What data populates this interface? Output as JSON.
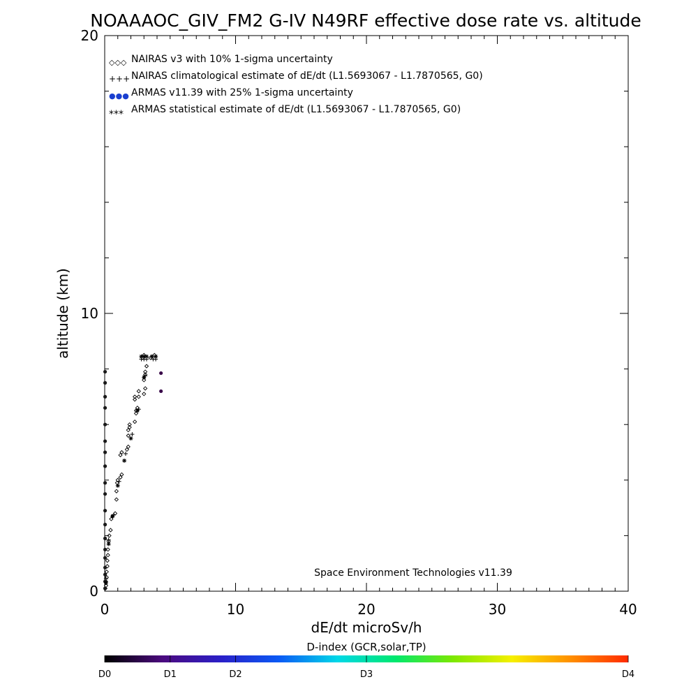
{
  "chart_data": {
    "type": "scatter",
    "title": "NOAAAOC_GIV_FM2 G-IV   N49RF  effective dose rate vs. altitude",
    "xlabel": "dE/dt microSv/h",
    "ylabel": "altitude (km)",
    "xlim": [
      0,
      40
    ],
    "ylim": [
      0,
      20
    ],
    "x_ticks": [
      {
        "value": 0,
        "label": "0"
      },
      {
        "value": 10,
        "label": "10"
      },
      {
        "value": 20,
        "label": "20"
      },
      {
        "value": 30,
        "label": "30"
      },
      {
        "value": 40,
        "label": "40"
      }
    ],
    "y_ticks": [
      {
        "value": 0,
        "label": "0"
      },
      {
        "value": 10,
        "label": "10"
      },
      {
        "value": 20,
        "label": "20"
      }
    ],
    "annotation": "Space Environment Technologies v11.39",
    "legend_position": "top-left",
    "series": [
      {
        "name": "NAIRAS v3 with 10% 1-sigma uncertainty",
        "marker": "diamond",
        "legend_symbol": "◇◇◇",
        "color": "#000000",
        "points": [
          [
            0.05,
            0.1
          ],
          [
            0.1,
            0.2
          ],
          [
            0.1,
            0.35
          ],
          [
            0.15,
            0.5
          ],
          [
            0.15,
            0.7
          ],
          [
            0.2,
            0.9
          ],
          [
            0.2,
            1.1
          ],
          [
            0.25,
            1.3
          ],
          [
            0.25,
            1.5
          ],
          [
            0.3,
            1.8
          ],
          [
            0.35,
            2.0
          ],
          [
            0.45,
            2.2
          ],
          [
            0.5,
            2.6
          ],
          [
            0.6,
            2.7
          ],
          [
            0.8,
            2.8
          ],
          [
            0.9,
            3.3
          ],
          [
            0.9,
            3.6
          ],
          [
            0.95,
            3.9
          ],
          [
            1.0,
            4.0
          ],
          [
            1.2,
            4.1
          ],
          [
            1.3,
            4.2
          ],
          [
            1.2,
            4.9
          ],
          [
            1.3,
            5.0
          ],
          [
            1.7,
            5.1
          ],
          [
            1.8,
            5.2
          ],
          [
            1.8,
            5.6
          ],
          [
            1.8,
            5.8
          ],
          [
            1.9,
            5.9
          ],
          [
            1.9,
            6.0
          ],
          [
            2.3,
            6.1
          ],
          [
            2.4,
            6.4
          ],
          [
            2.4,
            6.5
          ],
          [
            2.5,
            6.6
          ],
          [
            2.3,
            6.9
          ],
          [
            2.3,
            7.0
          ],
          [
            2.6,
            7.0
          ],
          [
            2.6,
            7.2
          ],
          [
            3.0,
            7.1
          ],
          [
            3.1,
            7.3
          ],
          [
            3.0,
            7.6
          ],
          [
            3.1,
            7.8
          ],
          [
            3.1,
            7.9
          ],
          [
            3.2,
            8.1
          ],
          [
            2.9,
            8.4
          ],
          [
            3.0,
            8.5
          ],
          [
            3.5,
            8.4
          ],
          [
            3.8,
            8.5
          ]
        ]
      },
      {
        "name": "NAIRAS climatological estimate of dE/dt (L1.5693067 - L1.7870565, G0)",
        "marker": "plus",
        "legend_symbol": "+++",
        "color": "#000000",
        "points": [
          [
            2.8,
            8.35
          ],
          [
            3.0,
            8.35
          ],
          [
            3.2,
            8.35
          ],
          [
            3.7,
            8.35
          ],
          [
            3.9,
            8.35
          ],
          [
            3.1,
            7.75
          ],
          [
            2.6,
            6.55
          ],
          [
            2.1,
            5.65
          ],
          [
            1.6,
            4.95
          ],
          [
            1.1,
            3.95
          ],
          [
            0.7,
            2.75
          ],
          [
            0.3,
            1.85
          ],
          [
            0.1,
            0.45
          ]
        ]
      },
      {
        "name": "ARMAS v11.39 with 25% 1-sigma uncertainty",
        "marker": "dot",
        "legend_symbol": "●●●",
        "color": "#1a3fd0",
        "points": [
          [
            0.03,
            0.1
          ],
          [
            0.03,
            0.35
          ],
          [
            0.03,
            0.6
          ],
          [
            0.03,
            0.85
          ],
          [
            0.03,
            1.2
          ],
          [
            0.03,
            1.5
          ],
          [
            0.03,
            1.9
          ],
          [
            0.03,
            2.4
          ],
          [
            0.03,
            2.9
          ],
          [
            0.03,
            3.5
          ],
          [
            0.03,
            3.9
          ],
          [
            0.03,
            4.5
          ],
          [
            0.03,
            5.0
          ],
          [
            0.03,
            5.4
          ],
          [
            0.03,
            6.0
          ],
          [
            0.03,
            6.6
          ],
          [
            0.03,
            7.0
          ],
          [
            0.03,
            7.5
          ],
          [
            0.03,
            7.9
          ],
          [
            4.3,
            7.85
          ],
          [
            4.3,
            7.2
          ]
        ]
      },
      {
        "name": "ARMAS statistical estimate of dE/dt (L1.5693067 - L1.7870565, G0)",
        "marker": "asterisk",
        "legend_symbol": "***",
        "color": "#000000",
        "points": [
          [
            2.8,
            8.45
          ],
          [
            3.0,
            8.45
          ],
          [
            3.2,
            8.45
          ],
          [
            3.6,
            8.45
          ],
          [
            3.9,
            8.45
          ],
          [
            3.0,
            7.7
          ],
          [
            2.5,
            6.5
          ],
          [
            2.0,
            5.5
          ],
          [
            1.5,
            4.7
          ],
          [
            1.0,
            3.8
          ],
          [
            0.6,
            2.7
          ],
          [
            0.3,
            1.7
          ],
          [
            0.1,
            0.3
          ]
        ]
      }
    ],
    "colorbar": {
      "label": "D-index (GCR,solar,TP)",
      "stops": [
        "#000000",
        "#4b0a7f",
        "#2a1fc8",
        "#0a5af5",
        "#00d8e8",
        "#00e86e",
        "#7ee800",
        "#f6f000",
        "#ff9000",
        "#ff2a00"
      ],
      "ticks": [
        {
          "value": 0.0,
          "label": "D0"
        },
        {
          "value": 0.125,
          "label": "D1"
        },
        {
          "value": 0.25,
          "label": "D2"
        },
        {
          "value": 0.5,
          "label": "D3"
        },
        {
          "value": 1.0,
          "label": "D4"
        }
      ]
    }
  }
}
